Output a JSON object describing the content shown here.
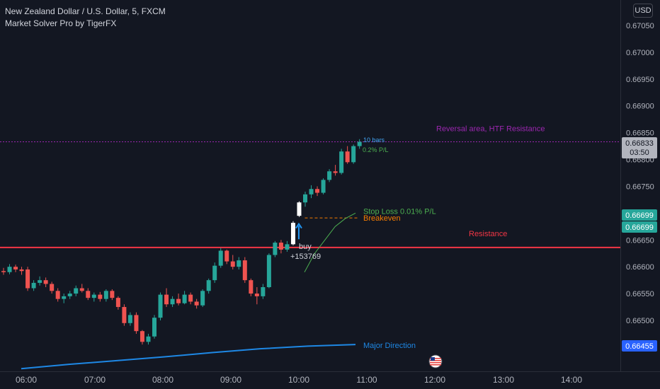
{
  "header": {
    "symbol_line": "New Zealand Dollar / U.S. Dollar, 5, FXCM",
    "indicator_line": "Market Solver Pro by TigerFX"
  },
  "currency_button": "USD",
  "chart_data": {
    "type": "candlestick",
    "title": "New Zealand Dollar / U.S. Dollar, 5, FXCM",
    "price_axis": {
      "ticks": [
        "0.67050",
        "0.67000",
        "0.66950",
        "0.66900",
        "0.66850",
        "0.66800",
        "0.66750",
        "0.66700",
        "0.66650",
        "0.66600",
        "0.66550",
        "0.66500"
      ],
      "range": [
        0.66405,
        0.67075
      ]
    },
    "time_axis": {
      "ticks": [
        "06:00",
        "07:00",
        "08:00",
        "09:00",
        "10:00",
        "11:00",
        "12:00",
        "13:00",
        "14:00"
      ],
      "bar_interval_minutes": 5
    },
    "candles": [
      {
        "o": 0.66592,
        "h": 0.66598,
        "l": 0.66585,
        "c": 0.6659
      },
      {
        "o": 0.6659,
        "h": 0.66605,
        "l": 0.66586,
        "c": 0.666
      },
      {
        "o": 0.666,
        "h": 0.66604,
        "l": 0.6659,
        "c": 0.66595
      },
      {
        "o": 0.66595,
        "h": 0.666,
        "l": 0.66585,
        "c": 0.66592
      },
      {
        "o": 0.66595,
        "h": 0.666,
        "l": 0.66555,
        "c": 0.6656
      },
      {
        "o": 0.6656,
        "h": 0.66575,
        "l": 0.66555,
        "c": 0.6657
      },
      {
        "o": 0.6657,
        "h": 0.66582,
        "l": 0.66565,
        "c": 0.66575
      },
      {
        "o": 0.66575,
        "h": 0.6658,
        "l": 0.66562,
        "c": 0.66568
      },
      {
        "o": 0.66568,
        "h": 0.66572,
        "l": 0.6655,
        "c": 0.66555
      },
      {
        "o": 0.66555,
        "h": 0.6656,
        "l": 0.66535,
        "c": 0.6654
      },
      {
        "o": 0.6654,
        "h": 0.6655,
        "l": 0.66532,
        "c": 0.66545
      },
      {
        "o": 0.66545,
        "h": 0.66555,
        "l": 0.6654,
        "c": 0.6655
      },
      {
        "o": 0.6655,
        "h": 0.66565,
        "l": 0.66545,
        "c": 0.6656
      },
      {
        "o": 0.6656,
        "h": 0.66568,
        "l": 0.66552,
        "c": 0.66555
      },
      {
        "o": 0.66555,
        "h": 0.6656,
        "l": 0.66538,
        "c": 0.66542
      },
      {
        "o": 0.66542,
        "h": 0.66552,
        "l": 0.66535,
        "c": 0.66548
      },
      {
        "o": 0.66548,
        "h": 0.66553,
        "l": 0.66535,
        "c": 0.6654
      },
      {
        "o": 0.6654,
        "h": 0.66558,
        "l": 0.66535,
        "c": 0.66555
      },
      {
        "o": 0.66555,
        "h": 0.66558,
        "l": 0.66538,
        "c": 0.66542
      },
      {
        "o": 0.66542,
        "h": 0.66545,
        "l": 0.6652,
        "c": 0.66525
      },
      {
        "o": 0.66525,
        "h": 0.6653,
        "l": 0.6649,
        "c": 0.66495
      },
      {
        "o": 0.66495,
        "h": 0.66515,
        "l": 0.6649,
        "c": 0.6651
      },
      {
        "o": 0.6651,
        "h": 0.66515,
        "l": 0.66475,
        "c": 0.6648
      },
      {
        "o": 0.6648,
        "h": 0.66482,
        "l": 0.66455,
        "c": 0.6646
      },
      {
        "o": 0.6646,
        "h": 0.66475,
        "l": 0.66455,
        "c": 0.6647
      },
      {
        "o": 0.6647,
        "h": 0.6651,
        "l": 0.66466,
        "c": 0.66505
      },
      {
        "o": 0.66505,
        "h": 0.66552,
        "l": 0.665,
        "c": 0.66548
      },
      {
        "o": 0.66548,
        "h": 0.6656,
        "l": 0.66525,
        "c": 0.6653
      },
      {
        "o": 0.6653,
        "h": 0.66545,
        "l": 0.66525,
        "c": 0.6654
      },
      {
        "o": 0.6654,
        "h": 0.6655,
        "l": 0.66528,
        "c": 0.66532
      },
      {
        "o": 0.66532,
        "h": 0.66555,
        "l": 0.6653,
        "c": 0.66548
      },
      {
        "o": 0.66548,
        "h": 0.66552,
        "l": 0.6653,
        "c": 0.66535
      },
      {
        "o": 0.66535,
        "h": 0.6654,
        "l": 0.66522,
        "c": 0.66528
      },
      {
        "o": 0.66528,
        "h": 0.66558,
        "l": 0.66525,
        "c": 0.66555
      },
      {
        "o": 0.66555,
        "h": 0.66578,
        "l": 0.6655,
        "c": 0.66575
      },
      {
        "o": 0.66575,
        "h": 0.66608,
        "l": 0.6657,
        "c": 0.66602
      },
      {
        "o": 0.66602,
        "h": 0.66635,
        "l": 0.66598,
        "c": 0.6663
      },
      {
        "o": 0.6663,
        "h": 0.66632,
        "l": 0.66605,
        "c": 0.6661
      },
      {
        "o": 0.6661,
        "h": 0.66622,
        "l": 0.66595,
        "c": 0.666
      },
      {
        "o": 0.666,
        "h": 0.66618,
        "l": 0.66595,
        "c": 0.66612
      },
      {
        "o": 0.66612,
        "h": 0.66618,
        "l": 0.6657,
        "c": 0.66575
      },
      {
        "o": 0.66575,
        "h": 0.66578,
        "l": 0.66545,
        "c": 0.6655
      },
      {
        "o": 0.6655,
        "h": 0.66562,
        "l": 0.6653,
        "c": 0.66545
      },
      {
        "o": 0.66545,
        "h": 0.66568,
        "l": 0.6654,
        "c": 0.66562
      },
      {
        "o": 0.66562,
        "h": 0.66625,
        "l": 0.6656,
        "c": 0.66622
      },
      {
        "o": 0.66622,
        "h": 0.66648,
        "l": 0.66618,
        "c": 0.66645
      },
      {
        "o": 0.66645,
        "h": 0.6665,
        "l": 0.66625,
        "c": 0.66632
      },
      {
        "o": 0.66632,
        "h": 0.66648,
        "l": 0.66628,
        "c": 0.66642
      },
      {
        "o": 0.66642,
        "h": 0.66685,
        "l": 0.6664,
        "c": 0.66682
      },
      {
        "o": 0.66695,
        "h": 0.66722,
        "l": 0.66693,
        "c": 0.6672
      },
      {
        "o": 0.6672,
        "h": 0.6674,
        "l": 0.66712,
        "c": 0.66735
      },
      {
        "o": 0.66735,
        "h": 0.66752,
        "l": 0.66728,
        "c": 0.66745
      },
      {
        "o": 0.66745,
        "h": 0.6675,
        "l": 0.66732,
        "c": 0.66738
      },
      {
        "o": 0.66738,
        "h": 0.66765,
        "l": 0.66735,
        "c": 0.66762
      },
      {
        "o": 0.66762,
        "h": 0.66782,
        "l": 0.66758,
        "c": 0.66778
      },
      {
        "o": 0.66778,
        "h": 0.6679,
        "l": 0.6677,
        "c": 0.66775
      },
      {
        "o": 0.66775,
        "h": 0.6682,
        "l": 0.66772,
        "c": 0.66815
      },
      {
        "o": 0.66815,
        "h": 0.66825,
        "l": 0.66792,
        "c": 0.66795
      },
      {
        "o": 0.66795,
        "h": 0.66828,
        "l": 0.66792,
        "c": 0.66825
      },
      {
        "o": 0.66825,
        "h": 0.66838,
        "l": 0.6682,
        "c": 0.66833
      }
    ],
    "signal_candle_index": [
      48,
      49
    ],
    "major_direction": [
      0.6641,
      0.66418,
      0.66425,
      0.66432,
      0.6644,
      0.66447,
      0.66452,
      0.66455
    ],
    "stop_loss_curve": [
      0.6659,
      0.66625,
      0.6665,
      0.66675,
      0.6669,
      0.667
    ],
    "levels": [
      {
        "name": "Resistance",
        "price": 0.66636,
        "color": "#f23645"
      },
      {
        "name": "Reversal area, HTF Resistance",
        "price": 0.66833,
        "color": "#9c27b0"
      },
      {
        "name": "Breakeven",
        "price": 0.66691,
        "color": "#f57c00"
      }
    ],
    "annotations": {
      "reversal": "Reversal area, HTF Resistance",
      "resistance": "Resistance",
      "stop_loss": "Stop Loss 0.01% P/L",
      "breakeven": "Breakeven",
      "bars": "10 bars",
      "pnl": "0.2% P/L",
      "buy": "buy",
      "buy_volume": "+153769",
      "major_direction": "Major Direction"
    },
    "price_labels": [
      {
        "text": "0.66833",
        "sub": "03:50",
        "bg": "#b2b5be",
        "fg": "#131722"
      },
      {
        "text": "0.66699",
        "bg": "#26a69a",
        "fg": "#ffffff"
      },
      {
        "text": "0.66699",
        "bg": "#26a69a",
        "fg": "#ffffff"
      },
      {
        "text": "0.66455",
        "bg": "#2962ff",
        "fg": "#ffffff"
      }
    ],
    "colors": {
      "background": "#131722",
      "bull": "#26a69a",
      "bear": "#ef5350",
      "signal": "#ffffff",
      "text": "#d1d4dc",
      "major_direction": "#1e88e5",
      "stop_loss": "#4caf50",
      "buy_arrow": "#2196f3"
    },
    "event_marker_icon": "us-flag-icon"
  }
}
